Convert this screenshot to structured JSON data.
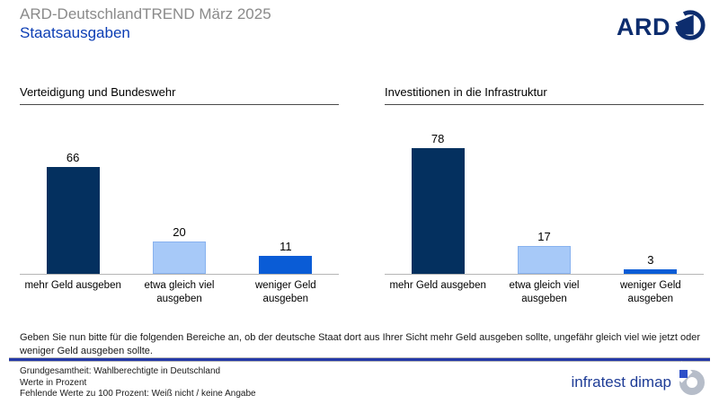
{
  "header": {
    "title": "ARD-DeutschlandTREND März 2025",
    "subtitle": "Staatsausgaben",
    "ard_logo_text": "ARD"
  },
  "chart_data": [
    {
      "type": "bar",
      "title": "Verteidigung und Bundeswehr",
      "categories": [
        "mehr Geld ausgeben",
        "etwa gleich viel ausgeben",
        "weniger Geld ausgeben"
      ],
      "values": [
        66,
        20,
        11
      ],
      "unit": "percent",
      "ylim": [
        0,
        100
      ],
      "grid": false,
      "legend": "none",
      "bar_colors": [
        "#04305F",
        "#A7C9F8",
        "#0A5CD6"
      ]
    },
    {
      "type": "bar",
      "title": "Investitionen in die Infrastruktur",
      "categories": [
        "mehr Geld ausgeben",
        "etwa gleich viel ausgeben",
        "weniger Geld ausgeben"
      ],
      "values": [
        78,
        17,
        3
      ],
      "unit": "percent",
      "ylim": [
        0,
        100
      ],
      "grid": false,
      "legend": "none",
      "bar_colors": [
        "#04305F",
        "#A7C9F8",
        "#0A5CD6"
      ]
    }
  ],
  "question": "Geben Sie nun bitte für die folgenden Bereiche an, ob der deutsche Staat dort aus Ihrer Sicht mehr Geld ausgeben sollte, ungefähr gleich viel wie jetzt oder weniger Geld ausgeben sollte.",
  "footnotes": [
    "Grundgesamtheit: Wahlberechtigte in Deutschland",
    "Werte in Prozent",
    "Fehlende Werte zu 100 Prozent: Weiß nicht / keine Angabe"
  ],
  "branding": {
    "institute": "infratest dimap"
  },
  "colors": {
    "accent_blue": "#0B3DB4",
    "title_gray": "#8a8a8a",
    "bar_dark_navy": "#04305F",
    "bar_light_blue": "#A7C9F8",
    "bar_light_blue_border": "#88B2EF",
    "bar_medium_blue": "#0A5CD6",
    "separator_blue": "#2439A8",
    "ard_navy": "#0D2D6E",
    "dimap_blue": "#1E3C96",
    "dimap_gray": "#B6BDC9"
  }
}
